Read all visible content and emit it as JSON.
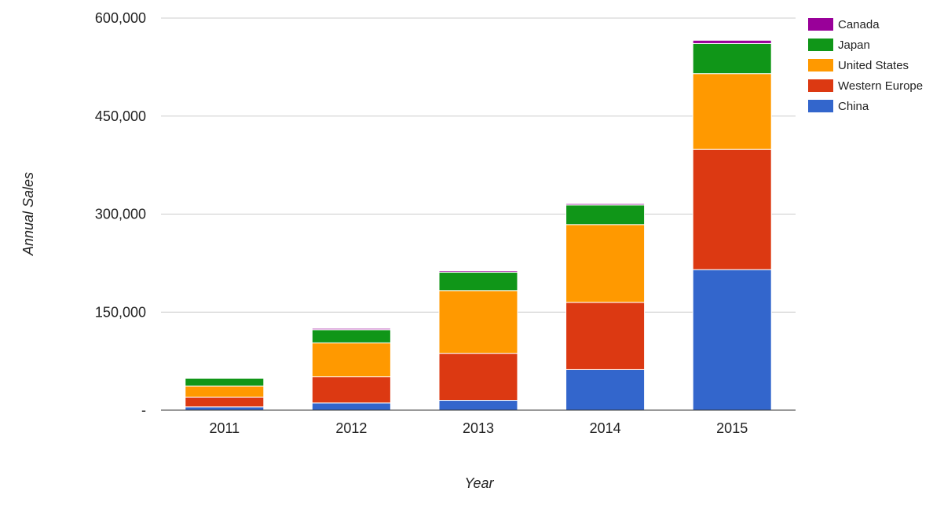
{
  "chart_data": {
    "type": "bar",
    "stacked": true,
    "title": "",
    "xlabel": "Year",
    "ylabel": "Annual Sales",
    "categories": [
      "2011",
      "2012",
      "2013",
      "2014",
      "2015"
    ],
    "ylim": [
      0,
      600000
    ],
    "yticks": [
      0,
      150000,
      300000,
      450000,
      600000
    ],
    "ytick_labels": [
      "-",
      "150,000",
      "300,000",
      "450,000",
      "600,000"
    ],
    "grid": true,
    "legend_position": "right",
    "series": [
      {
        "name": "China",
        "color": "#3366cc",
        "values": [
          5000,
          11000,
          15000,
          62000,
          215000
        ]
      },
      {
        "name": "Western Europe",
        "color": "#dc3912",
        "values": [
          15000,
          40000,
          72000,
          103000,
          184000
        ]
      },
      {
        "name": "United States",
        "color": "#ff9900",
        "values": [
          17000,
          52000,
          96000,
          119000,
          116000
        ]
      },
      {
        "name": "Japan",
        "color": "#109618",
        "values": [
          12000,
          20000,
          28000,
          30000,
          46000
        ]
      },
      {
        "name": "Canada",
        "color": "#990099",
        "values": [
          1000,
          2000,
          2000,
          2000,
          5000
        ]
      }
    ]
  }
}
